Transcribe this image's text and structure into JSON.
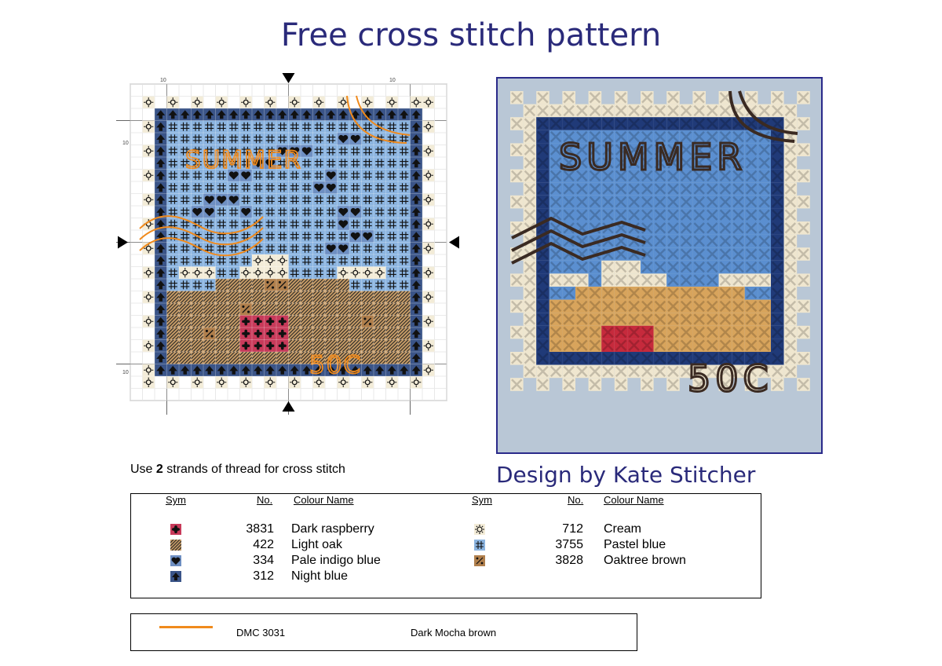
{
  "title": "Free cross stitch pattern",
  "chart": {
    "scale_labels": [
      "10",
      "10",
      "10",
      "10"
    ],
    "text_summer": "SUMMER",
    "text_value": "50C"
  },
  "instructions": {
    "prefix": "Use ",
    "count": "2",
    "suffix": " strands of thread for cross stitch"
  },
  "designer": "Design by Kate Stitcher",
  "legend": {
    "headers": {
      "sym": "Sym",
      "no": "No.",
      "name": "Colour Name"
    },
    "left": [
      {
        "icon": "flower-icon",
        "color": "#c83a5a",
        "no": "3831",
        "name": "Dark raspberry"
      },
      {
        "icon": "diagonal-lines-icon",
        "color": "#c49a66",
        "no": "422",
        "name": "Light oak"
      },
      {
        "icon": "heart-icon",
        "color": "#6e8fc2",
        "no": "334",
        "name": "Pale indigo blue"
      },
      {
        "icon": "arrow-up-icon",
        "color": "#3a5488",
        "no": "312",
        "name": "Night blue"
      }
    ],
    "right": [
      {
        "icon": "sun-icon",
        "color": "#f3ecd8",
        "no": "712",
        "name": "Cream"
      },
      {
        "icon": "hash-icon",
        "color": "#8bb4e0",
        "no": "3755",
        "name": "Pastel blue"
      },
      {
        "icon": "percent-icon",
        "color": "#b07f4c",
        "no": "3828",
        "name": "Oaktree brown"
      }
    ]
  },
  "backstitch": {
    "color": "#f08a1c",
    "code": "DMC 3031",
    "name": "Dark Mocha brown"
  }
}
